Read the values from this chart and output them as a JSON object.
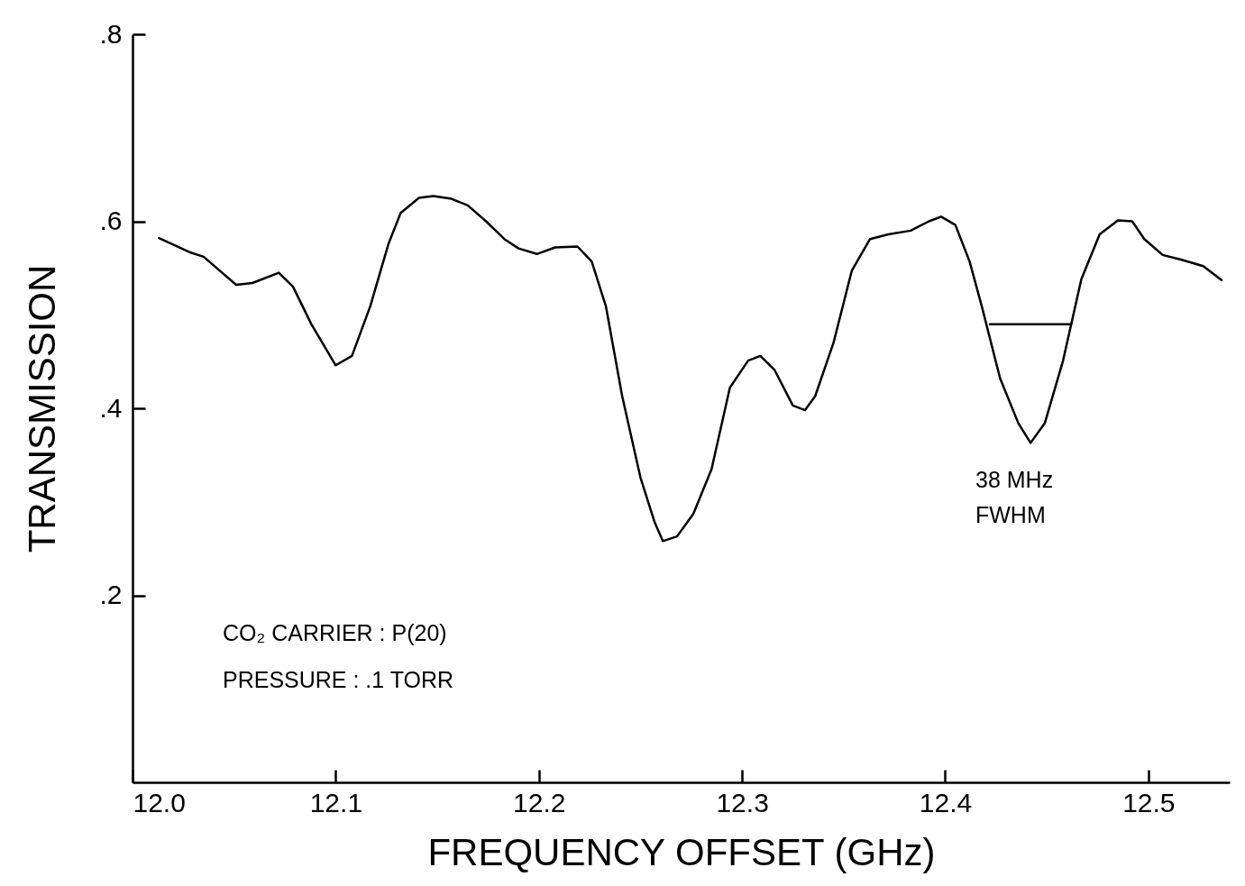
{
  "chart_data": {
    "type": "line",
    "xlabel": "FREQUENCY OFFSET (GHz)",
    "ylabel": "TRANSMISSION",
    "xlim": [
      12.0,
      12.54
    ],
    "ylim": [
      0,
      0.8
    ],
    "xticks": [
      {
        "value": 12.0,
        "label": "12.0"
      },
      12.1,
      12.2,
      12.3,
      12.4,
      12.5
    ],
    "yticks": [
      {
        "value": 0.2,
        "label": ".2"
      },
      {
        "value": 0.4,
        "label": ".4"
      },
      {
        "value": 0.6,
        "label": ".6"
      },
      {
        "value": 0.8,
        "label": ".8"
      }
    ],
    "series": [
      {
        "color": "#000000",
        "x": [
          12.013,
          12.028,
          12.035,
          12.051,
          12.059,
          12.072,
          12.079,
          12.088,
          12.1,
          12.108,
          12.117,
          12.126,
          12.132,
          12.141,
          12.148,
          12.157,
          12.165,
          12.174,
          12.183,
          12.19,
          12.199,
          12.208,
          12.219,
          12.226,
          12.233,
          12.241,
          12.25,
          12.257,
          12.261,
          12.268,
          12.276,
          12.285,
          12.294,
          12.303,
          12.309,
          12.316,
          12.325,
          12.331,
          12.336,
          12.345,
          12.354,
          12.363,
          12.372,
          12.383,
          12.392,
          12.398,
          12.405,
          12.412,
          12.418,
          12.427,
          12.436,
          12.442,
          12.449,
          12.458,
          12.467,
          12.476,
          12.485,
          12.492,
          12.498,
          12.507,
          12.516,
          12.527,
          12.536
        ],
        "values": [
          0.582,
          0.567,
          0.562,
          0.532,
          0.534,
          0.545,
          0.53,
          0.49,
          0.446,
          0.456,
          0.509,
          0.576,
          0.609,
          0.625,
          0.627,
          0.624,
          0.617,
          0.6,
          0.581,
          0.571,
          0.565,
          0.572,
          0.573,
          0.557,
          0.509,
          0.413,
          0.326,
          0.278,
          0.258,
          0.263,
          0.287,
          0.335,
          0.422,
          0.451,
          0.456,
          0.441,
          0.403,
          0.398,
          0.413,
          0.47,
          0.547,
          0.581,
          0.586,
          0.59,
          0.6,
          0.605,
          0.596,
          0.557,
          0.509,
          0.432,
          0.384,
          0.363,
          0.384,
          0.451,
          0.538,
          0.586,
          0.601,
          0.6,
          0.581,
          0.564,
          0.559,
          0.552,
          0.537
        ]
      },
      {
        "type": "line",
        "color": "#000000",
        "x": [
          12.422,
          12.462
        ],
        "values": [
          0.49,
          0.49
        ]
      }
    ],
    "annotations": [
      "38 MHz",
      "FWHM",
      "CO₂ CARRIER : P(20)",
      "PRESSURE : .1 TORR"
    ]
  }
}
